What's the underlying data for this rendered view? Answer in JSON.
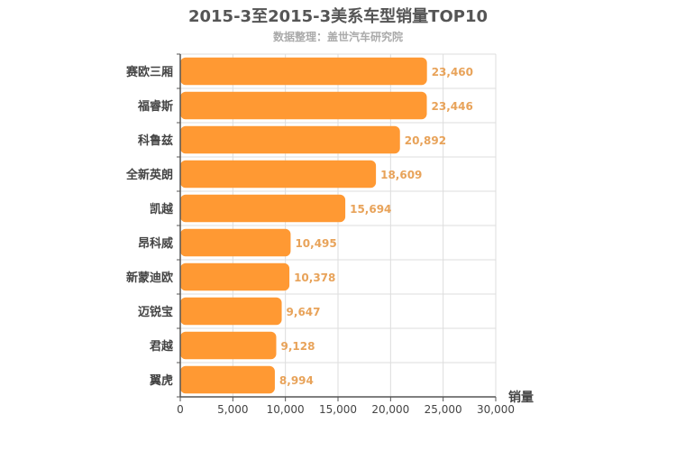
{
  "chart_data": {
    "type": "bar",
    "orientation": "horizontal",
    "title": "2015-3至2015-3美系车型销量TOP10",
    "subtitle": "数据整理：盖世汽车研究院",
    "categories": [
      "赛欧三厢",
      "福睿斯",
      "科鲁兹",
      "全新英朗",
      "凯越",
      "昂科威",
      "新蒙迪欧",
      "迈锐宝",
      "君越",
      "翼虎"
    ],
    "values": [
      23460,
      23446,
      20892,
      18609,
      15694,
      10495,
      10378,
      9647,
      9128,
      8994
    ],
    "value_labels": [
      "23,460",
      "23,446",
      "20,892",
      "18,609",
      "15,694",
      "10,495",
      "10,378",
      "9,647",
      "9,128",
      "8,994"
    ],
    "xlabel": "销量",
    "ylabel": "",
    "xlim": [
      0,
      30000
    ],
    "ticks": [
      0,
      5000,
      10000,
      15000,
      20000,
      25000,
      30000
    ],
    "tick_labels": [
      "0",
      "5,000",
      "10,000",
      "15,000",
      "20,000",
      "25,000",
      "30,000"
    ],
    "grid": true,
    "colors": {
      "bar": "#ff9933",
      "data_label": "#e8a35a",
      "grid": "#dddddd",
      "axis": "#555555"
    }
  }
}
